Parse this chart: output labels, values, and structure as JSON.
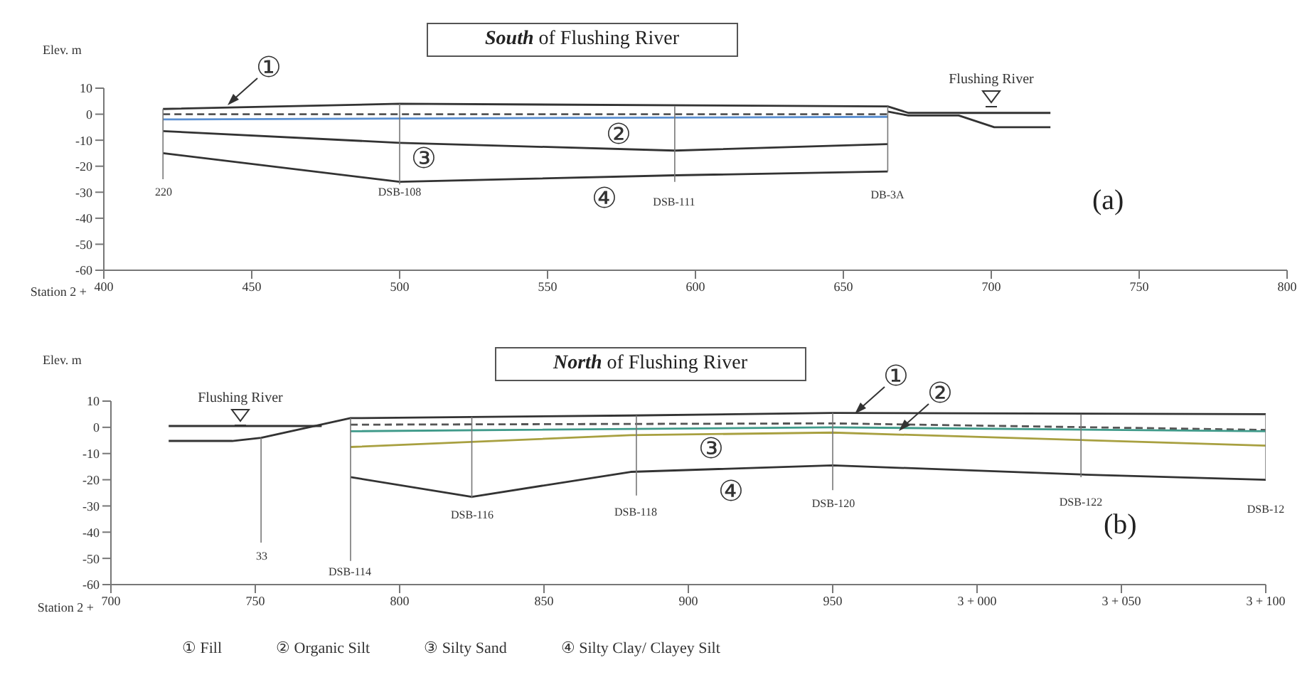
{
  "chart_data": [
    {
      "type": "line",
      "title": "South of Flushing River",
      "xlabel": "Station 2 +",
      "ylabel": "Elev. m",
      "marker": "none",
      "xlim": [
        400,
        800
      ],
      "xticks": [
        400,
        450,
        500,
        550,
        600,
        650,
        700,
        750,
        800
      ],
      "ylim": [
        -60,
        10
      ],
      "yticks": [
        -60,
        -50,
        -40,
        -30,
        -20,
        -10,
        0,
        10
      ],
      "series": [
        {
          "color": "#333333",
          "x": [
            420,
            500,
            665,
            672,
            720
          ],
          "values": [
            2,
            4,
            3,
            0.5,
            0.5
          ]
        },
        {
          "color": "#555555",
          "line_style": "dashed",
          "x": [
            420,
            665
          ],
          "values": [
            0,
            0
          ]
        },
        {
          "color": "#5b8fd0",
          "x": [
            420,
            665
          ],
          "values": [
            -2,
            -1
          ]
        },
        {
          "color": "#333333",
          "x": [
            420,
            500,
            593,
            665
          ],
          "values": [
            -6.5,
            -11,
            -14,
            -11.5
          ]
        },
        {
          "color": "#333333",
          "x": [
            420,
            500,
            593,
            665
          ],
          "values": [
            -15,
            -26,
            -23.5,
            -22
          ]
        },
        {
          "color": "#333333",
          "x": [
            665,
            672,
            689,
            701,
            720
          ],
          "values": [
            1,
            -0.5,
            -0.5,
            -5,
            -5
          ]
        },
        {
          "color": "#777777",
          "x": [
            420,
            420
          ],
          "values": [
            2,
            -25
          ]
        },
        {
          "color": "#777777",
          "x": [
            500,
            500
          ],
          "values": [
            4,
            -27
          ]
        },
        {
          "color": "#777777",
          "x": [
            593,
            593
          ],
          "values": [
            3,
            -26
          ]
        },
        {
          "color": "#777777",
          "x": [
            665,
            665
          ],
          "values": [
            3,
            -22
          ]
        }
      ],
      "annotations": [
        "Flushing River",
        "①",
        "②",
        "③",
        "④",
        "220",
        "DSB-108",
        "DSB-111",
        "DB-3A",
        "(a)"
      ]
    },
    {
      "type": "line",
      "title": "North of Flushing River",
      "xlabel": "Station 2 +",
      "ylabel": "Elev. m",
      "marker": "none",
      "xlim": [
        700,
        1100
      ],
      "xticks": [
        700,
        750,
        800,
        850,
        900,
        950,
        {
          "value": 1000,
          "label": "3 + 000"
        },
        {
          "value": 1050,
          "label": "3 + 050"
        },
        {
          "value": 1100,
          "label": "3 + 100"
        }
      ],
      "ylim": [
        -60,
        10
      ],
      "yticks": [
        -60,
        -50,
        -40,
        -30,
        -20,
        -10,
        0,
        10
      ],
      "series": [
        {
          "color": "#333333",
          "x": [
            720,
            742,
            752,
            783,
            880,
            950,
            1100
          ],
          "values": [
            -5.2,
            -5.2,
            -4,
            3.5,
            4.5,
            5.5,
            5
          ]
        },
        {
          "color": "#333333",
          "x": [
            720,
            773
          ],
          "values": [
            0.5,
            0.5
          ]
        },
        {
          "color": "#555555",
          "line_style": "dashed",
          "x": [
            783,
            950,
            1100
          ],
          "values": [
            1,
            1.5,
            -1
          ]
        },
        {
          "color": "#3f9a8a",
          "x": [
            783,
            950,
            1100
          ],
          "values": [
            -1.5,
            0,
            -1.5
          ]
        },
        {
          "color": "#a8a040",
          "x": [
            783,
            880,
            950,
            1100
          ],
          "values": [
            -7.5,
            -3,
            -2,
            -7
          ]
        },
        {
          "color": "#333333",
          "x": [
            783,
            825,
            880,
            950,
            1036,
            1100
          ],
          "values": [
            -19,
            -26.5,
            -17,
            -14.5,
            -18,
            -20
          ]
        },
        {
          "color": "#777777",
          "x": [
            752,
            752
          ],
          "values": [
            -4,
            -44
          ]
        },
        {
          "color": "#777777",
          "x": [
            783,
            783
          ],
          "values": [
            3.5,
            -51
          ]
        },
        {
          "color": "#777777",
          "x": [
            825,
            825
          ],
          "values": [
            4,
            -27
          ]
        },
        {
          "color": "#777777",
          "x": [
            882,
            882
          ],
          "values": [
            4.5,
            -26
          ]
        },
        {
          "color": "#777777",
          "x": [
            950,
            950
          ],
          "values": [
            5.5,
            -24
          ]
        },
        {
          "color": "#777777",
          "x": [
            1036,
            1036
          ],
          "values": [
            5,
            -19
          ]
        },
        {
          "color": "#777777",
          "x": [
            1100,
            1100
          ],
          "values": [
            5,
            -20
          ]
        }
      ],
      "annotations": [
        "Flushing River",
        "①",
        "②",
        "③",
        "④",
        "33",
        "DSB-114",
        "DSB-116",
        "DSB-118",
        "DSB-120",
        "DSB-122",
        "DSB-12",
        "(b)",
        "① Fill",
        "② Organic Silt",
        "③ Silty Sand",
        "④ Silty Clay/ Clayey Silt"
      ]
    }
  ]
}
